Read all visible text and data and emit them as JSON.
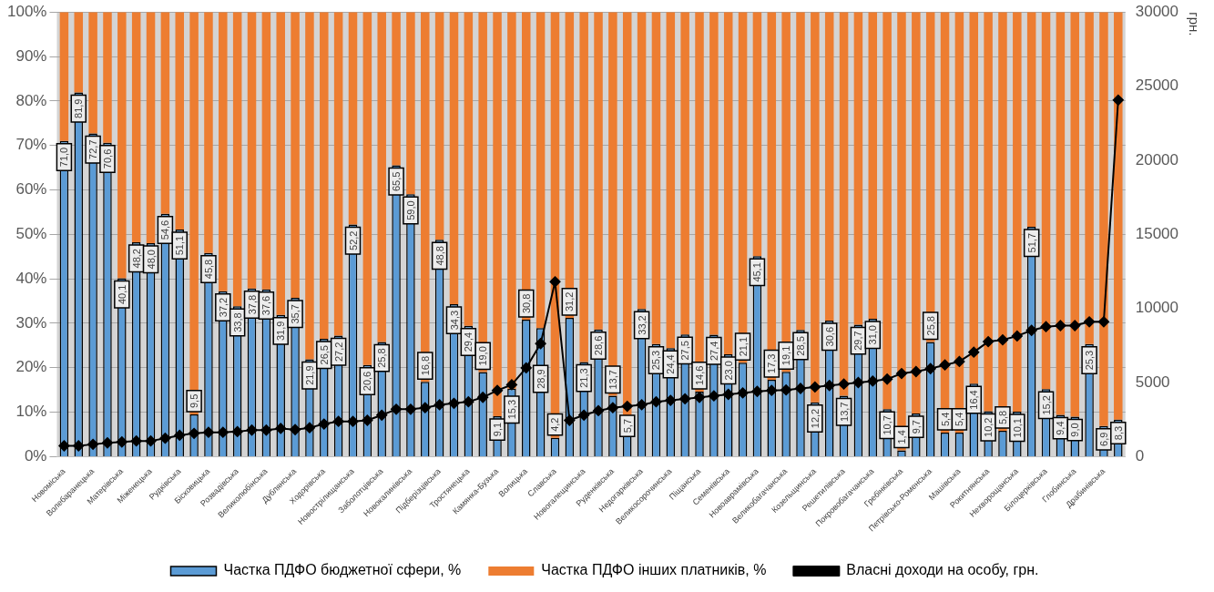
{
  "chart_data": {
    "type": "bar",
    "stacked": true,
    "grid": "y",
    "legend": "bottom",
    "marker": "diamond",
    "categories": [
      "Новоміська",
      null,
      "Волебаранецька",
      null,
      "Матерівська",
      null,
      "Міженецька",
      null,
      "Рудківська",
      null,
      "Бісковицька",
      null,
      "Розвадівська",
      null,
      "Великолюбінська",
      null,
      "Дублянська",
      null,
      "Ходорівська",
      null,
      "Новострілищанська",
      null,
      "Заболотцівська",
      null,
      "Новокалинівська",
      null,
      "Підберізцівська",
      null,
      "Тростянецька",
      null,
      "Камянка-Бузька",
      null,
      "Волицька",
      null,
      "Славська",
      null,
      "Новогалещинська",
      null,
      "Руденківська",
      null,
      "Недогарківська",
      null,
      "Великосорочинська",
      null,
      "Піщанська",
      null,
      "Семенівська",
      null,
      "Новоаврамівська",
      null,
      "Великобагачанська",
      null,
      "Козельщинська",
      null,
      "Решетилівська",
      null,
      "Покровобагачанська",
      null,
      "Гребінківська",
      null,
      "Петрівсько-Роменська",
      null,
      "Машівська",
      null,
      "Рокитнянська",
      null,
      "Нехворощанська",
      null,
      "Білоцерківська",
      null,
      "Глобинська",
      null,
      "Драбинівська",
      null
    ],
    "series": [
      {
        "name": "Частка ПДФО бюджетної сфери, %",
        "color": "#5b9bd5",
        "values": [
          71.0,
          81.9,
          72.7,
          70.6,
          40.1,
          48.2,
          48.0,
          54.6,
          51.1,
          9.5,
          45.8,
          37.2,
          33.8,
          37.8,
          37.6,
          31.9,
          35.7,
          21.9,
          26.5,
          27.2,
          52.2,
          20.6,
          25.8,
          65.5,
          59.0,
          16.8,
          48.8,
          34.3,
          29.4,
          19.0,
          9.1,
          15.3,
          30.8,
          28.9,
          4.2,
          31.2,
          21.3,
          28.6,
          13.7,
          5.7,
          33.2,
          25.3,
          24.4,
          27.5,
          14.6,
          27.4,
          23.0,
          21.1,
          45.1,
          17.3,
          19.1,
          28.5,
          12.2,
          30.6,
          13.7,
          29.7,
          31.0,
          10.7,
          1.4,
          9.7,
          25.8,
          5.4,
          5.4,
          16.4,
          10.2,
          5.8,
          10.1,
          51.7,
          15.2,
          9.4,
          9.0,
          25.3,
          6.9,
          8.3
        ],
        "value_labels": [
          "71,0",
          "81,9",
          "72,7",
          "70,6",
          "40,1",
          "48,2",
          "48,0",
          "54,6",
          "51,1",
          "9,5",
          "45,8",
          "37,2",
          "33,8",
          "37,8",
          "37,6",
          "31,9",
          "35,7",
          "21,9",
          "26,5",
          "27,2",
          "52,2",
          "20,6",
          "25,8",
          "65,5",
          "59,0",
          "16,8",
          "48,8",
          "34,3",
          "29,4",
          "19,0",
          "9,1",
          "15,3",
          "30,8",
          "28,9",
          "4,2",
          "31,2",
          "21,3",
          "28,6",
          "13,7",
          "5,7",
          "33,2",
          "25,3",
          "24,4",
          "27,5",
          "14,6",
          "27,4",
          "23,0",
          "21,1",
          "45,1",
          "17,3",
          "19,1",
          "28,5",
          "12,2",
          "30,6",
          "13,7",
          "29,7",
          "31,0",
          "10,7",
          "1,4",
          "9,7",
          "25,8",
          "5,4",
          "5,4",
          "16,4",
          "10,2",
          "5,8",
          "10,1",
          "51,7",
          "15,2",
          "9,4",
          "9,0",
          "25,3",
          "6,9",
          "8,3"
        ]
      },
      {
        "name": "Частка ПДФО інших платників, %",
        "color": "#ed7d31",
        "values": [
          29.0,
          18.1,
          27.3,
          29.4,
          59.9,
          51.8,
          52.0,
          45.4,
          48.9,
          90.5,
          54.2,
          62.8,
          66.2,
          62.2,
          62.4,
          68.1,
          64.3,
          78.1,
          73.5,
          72.8,
          47.8,
          79.4,
          74.2,
          34.5,
          41.0,
          83.2,
          51.2,
          65.7,
          70.6,
          81.0,
          90.9,
          84.7,
          69.2,
          71.1,
          95.8,
          68.8,
          78.7,
          71.4,
          86.3,
          94.3,
          66.8,
          74.7,
          75.6,
          72.5,
          85.4,
          72.6,
          77.0,
          78.9,
          54.9,
          82.7,
          80.9,
          71.5,
          87.8,
          69.4,
          86.3,
          70.3,
          69.0,
          89.3,
          98.6,
          90.3,
          74.2,
          94.6,
          94.6,
          83.6,
          89.8,
          94.2,
          89.9,
          48.3,
          84.8,
          90.6,
          91.0,
          74.7,
          93.1,
          91.7
        ]
      },
      {
        "name": "Власні доходи на особу, грн.",
        "type": "line",
        "axis": "y2",
        "color": "#000000",
        "values": [
          730,
          730,
          830,
          930,
          990,
          1060,
          1060,
          1240,
          1440,
          1570,
          1640,
          1640,
          1690,
          1790,
          1790,
          1900,
          1820,
          1950,
          2200,
          2380,
          2380,
          2450,
          2800,
          3200,
          3200,
          3300,
          3500,
          3600,
          3700,
          4000,
          4470,
          4850,
          5990,
          7630,
          11800,
          2450,
          2800,
          3100,
          3300,
          3400,
          3500,
          3700,
          3800,
          3900,
          4000,
          4100,
          4200,
          4300,
          4400,
          4470,
          4500,
          4600,
          4700,
          4800,
          4900,
          5000,
          5100,
          5230,
          5610,
          5740,
          5940,
          6190,
          6420,
          7050,
          7760,
          7880,
          8140,
          8520,
          8770,
          8840,
          8840,
          9100,
          9100,
          24060
        ]
      }
    ],
    "ylim": [
      0,
      100
    ],
    "yticks": [
      {
        "value": 0,
        "label": "0%"
      },
      {
        "value": 10,
        "label": "10%"
      },
      {
        "value": 20,
        "label": "20%"
      },
      {
        "value": 30,
        "label": "30%"
      },
      {
        "value": 40,
        "label": "40%"
      },
      {
        "value": 50,
        "label": "50%"
      },
      {
        "value": 60,
        "label": "60%"
      },
      {
        "value": 70,
        "label": "70%"
      },
      {
        "value": 80,
        "label": "80%"
      },
      {
        "value": 90,
        "label": "90%"
      },
      {
        "value": 100,
        "label": "100%"
      }
    ],
    "y2lim": [
      0,
      30000
    ],
    "y2ticks": [
      0,
      5000,
      10000,
      15000,
      20000,
      25000,
      30000
    ],
    "y2label": "грн."
  }
}
